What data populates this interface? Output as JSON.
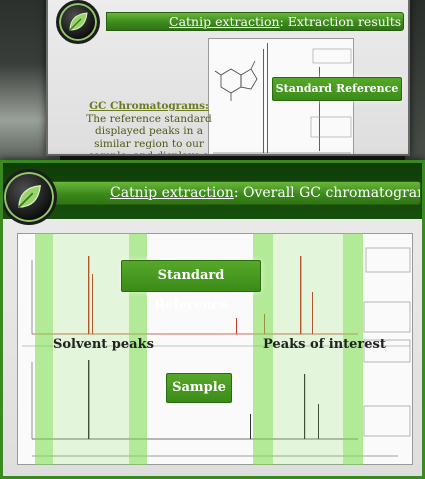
{
  "slide_top": {
    "title_link": "Catnip extraction",
    "title_rest": ": Extraction results",
    "callout": "Standard Reference",
    "gc_heading": "GC Chromatograms",
    "gc_heading_colon": ":",
    "gc_body": "The reference standard displayed peaks in a similar region to our sample, and displays a similar peak area"
  },
  "slide_bottom": {
    "title_link": "Catnip extraction",
    "title_rest": ": Overall GC chromatograms",
    "label_standard": "Standard Reference",
    "label_sample": "Sample",
    "label_solvent": "Solvent peaks",
    "label_interest": "Peaks of interest"
  },
  "colors": {
    "accent_green": "#3c8a1c",
    "peak_red": "#c0392b",
    "highlight_green": "#7ddc46"
  }
}
